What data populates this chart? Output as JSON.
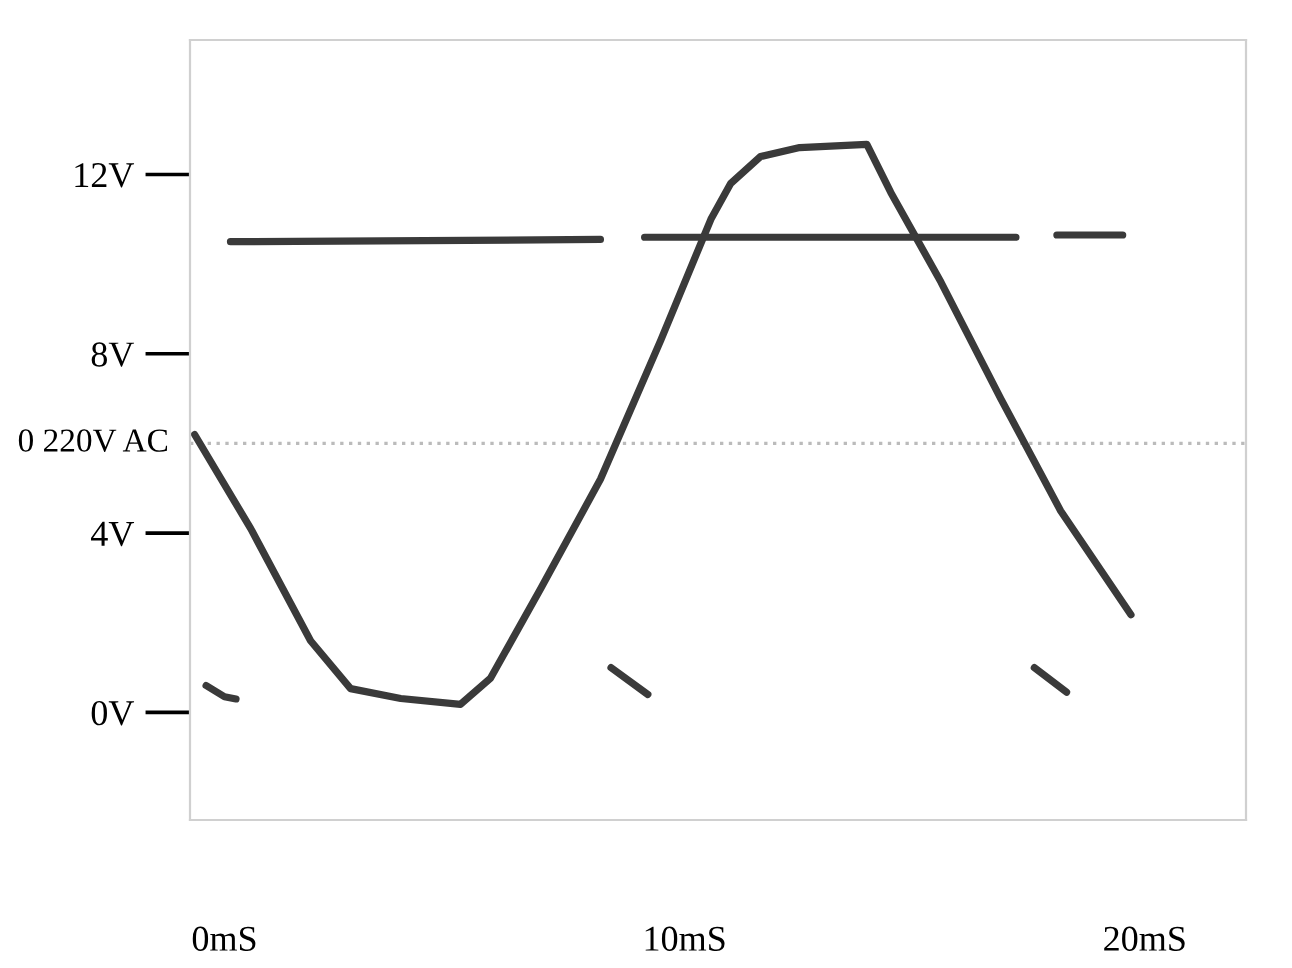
{
  "chart_data": {
    "type": "line",
    "xlim": [
      -0.75,
      22.2
    ],
    "ylim": [
      -2.4,
      15
    ],
    "xticks": [
      {
        "value": 0,
        "label": "0mS"
      },
      {
        "value": 10,
        "label": "10mS"
      },
      {
        "value": 20,
        "label": "20mS"
      }
    ],
    "yticks": [
      {
        "value": 0,
        "label": "0V"
      },
      {
        "value": 4,
        "label": "4V"
      },
      {
        "value": 8,
        "label": "8V"
      },
      {
        "value": 12,
        "label": "12V"
      }
    ],
    "grid": false,
    "marker": "none",
    "line_style": "solid",
    "ref_lines": [
      {
        "axis": "y",
        "value": 6,
        "label": "0 220V AC",
        "color": "#bbbbbb",
        "line_style": "dotted"
      }
    ],
    "series": [
      {
        "color": "#3a3a3a",
        "x": [
          -0.65,
          0.57,
          1.87,
          2.74,
          3.83,
          5.13,
          5.78,
          6.87,
          8.17,
          9.48,
          10.57,
          11.0,
          11.65,
          12.5,
          13.96,
          14.48,
          15.57,
          16.87,
          18.17,
          19.7
        ],
        "values": [
          6.2,
          4.1,
          1.6,
          0.53,
          0.31,
          0.18,
          0.76,
          2.76,
          5.2,
          8.3,
          11.0,
          11.8,
          12.4,
          12.6,
          12.67,
          11.6,
          9.6,
          7.0,
          4.5,
          2.18
        ]
      },
      {
        "color": "#3a3a3a",
        "x": [
          0.13,
          8.17,
          8.6,
          9.13,
          17.2,
          17.6,
          18.09,
          19.52
        ],
        "values": [
          10.5,
          10.55,
          null,
          10.6,
          10.6,
          null,
          10.65,
          10.65
        ]
      },
      {
        "color": "#3a3a3a",
        "x": [
          -0.4,
          0.0,
          0.25
        ],
        "values": [
          0.6,
          0.35,
          0.3
        ]
      },
      {
        "color": "#3a3a3a",
        "x": [
          8.4,
          9.2
        ],
        "values": [
          1.0,
          0.4
        ]
      },
      {
        "color": "#3a3a3a",
        "x": [
          17.6,
          18.3
        ],
        "values": [
          1.0,
          0.45
        ]
      }
    ]
  }
}
